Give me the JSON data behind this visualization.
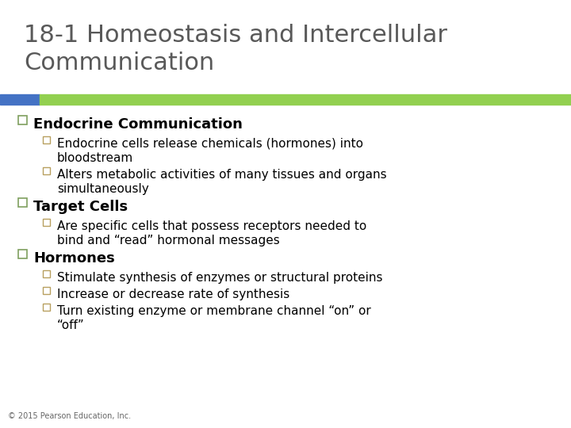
{
  "title_line1": "18-1 Homeostasis and Intercellular",
  "title_line2": "Communication",
  "title_color": "#595959",
  "title_fontsize": 22,
  "accent_bar_color_left": "#4472C4",
  "accent_bar_color_right": "#92D050",
  "background_color": "#FFFFFF",
  "bullet1_header": "Endocrine Communication",
  "bullet1_sub": [
    "Endocrine cells release chemicals (hormones) into\nbloodstream",
    "Alters metabolic activities of many tissues and organs\nsimultaneously"
  ],
  "bullet2_header": "Target Cells",
  "bullet2_sub": [
    "Are specific cells that possess receptors needed to\nbind and “read” hormonal messages"
  ],
  "bullet3_header": "Hormones",
  "bullet3_sub": [
    "Stimulate synthesis of enzymes or structural proteins",
    "Increase or decrease rate of synthesis",
    "Turn existing enzyme or membrane channel “on” or\n“off”"
  ],
  "footer": "© 2015 Pearson Education, Inc.",
  "header_fontsize": 13,
  "sub_fontsize": 11,
  "footer_fontsize": 7,
  "bullet_color": "#000000",
  "checkbox_large_color": "#7F9F5F",
  "checkbox_small_color": "#B8A060"
}
